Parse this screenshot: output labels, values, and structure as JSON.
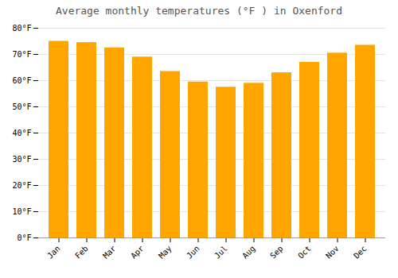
{
  "chart_data": {
    "type": "bar",
    "title": "Average monthly temperatures (°F ) in Oxenford",
    "categories": [
      "Jan",
      "Feb",
      "Mar",
      "Apr",
      "May",
      "Jun",
      "Jul",
      "Aug",
      "Sep",
      "Oct",
      "Nov",
      "Dec"
    ],
    "values": [
      75.0,
      74.5,
      72.5,
      69.0,
      63.5,
      59.5,
      57.5,
      59.0,
      63.0,
      67.0,
      70.5,
      73.5
    ],
    "color": "#FFA500",
    "ylim": [
      0,
      80
    ],
    "yticks": [
      {
        "value": 0,
        "label": "0°F"
      },
      {
        "value": 10,
        "label": "10°F"
      },
      {
        "value": 20,
        "label": "20°F"
      },
      {
        "value": 30,
        "label": "30°F"
      },
      {
        "value": 40,
        "label": "40°F"
      },
      {
        "value": 50,
        "label": "50°F"
      },
      {
        "value": 60,
        "label": "60°F"
      },
      {
        "value": 70,
        "label": "70°F"
      },
      {
        "value": 80,
        "label": "80°F"
      }
    ],
    "grid": true
  }
}
